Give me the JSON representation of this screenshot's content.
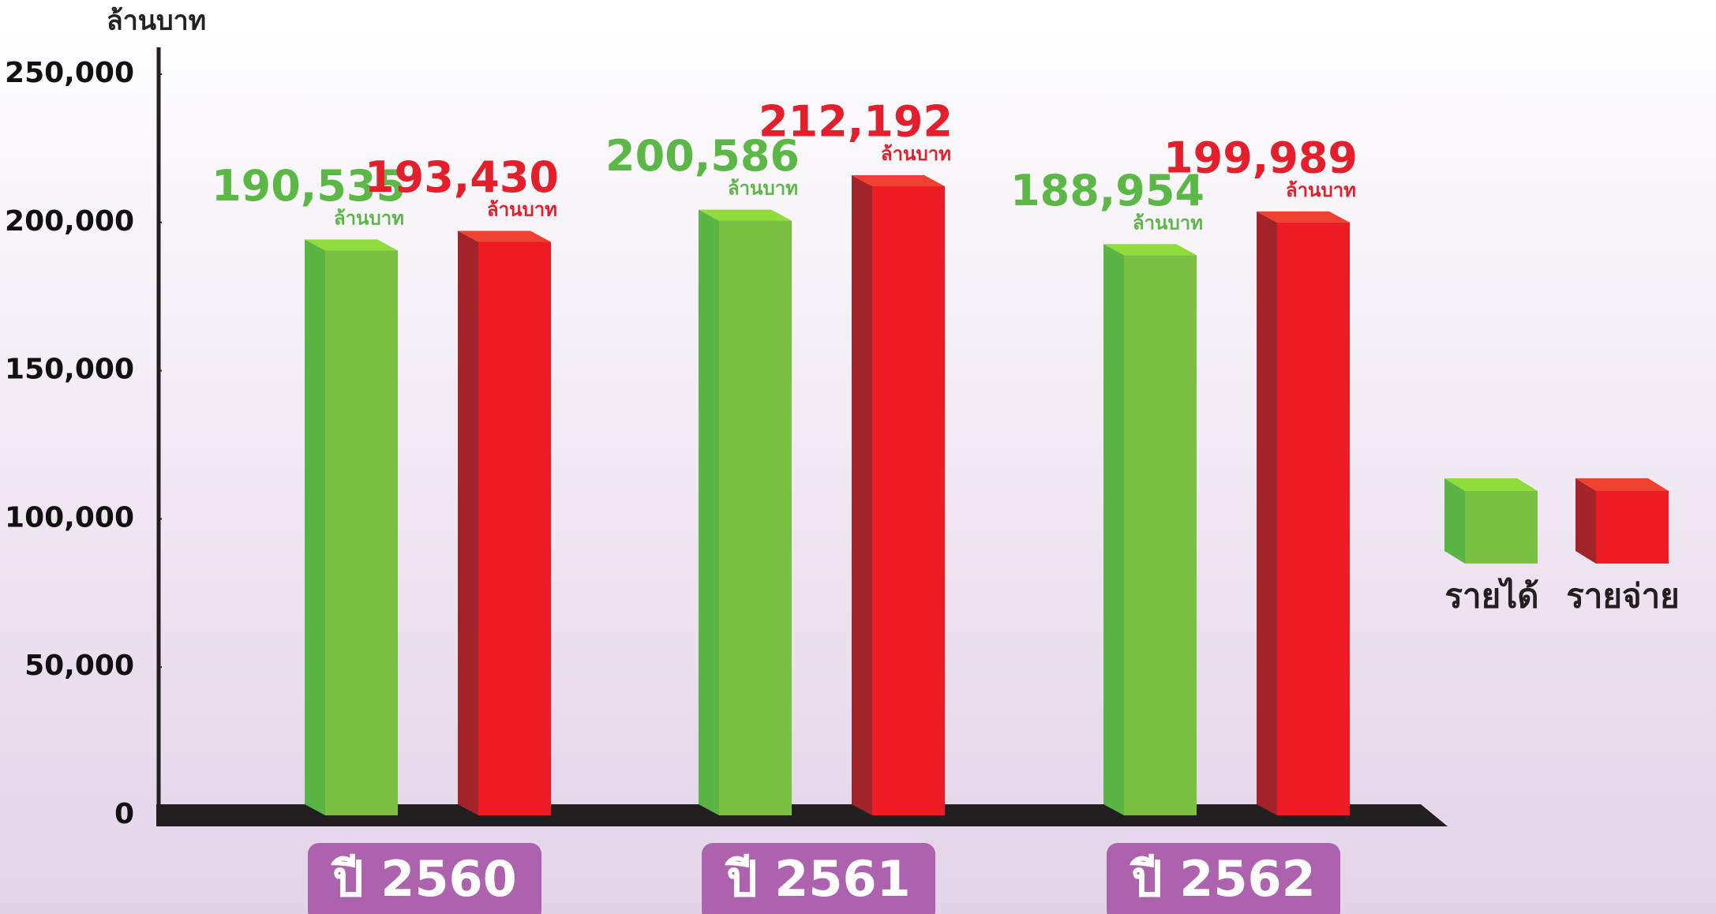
{
  "chart_data": {
    "type": "bar",
    "y_label": "ล้านบาท",
    "value_unit": "ล้านบาท",
    "categories": [
      "ปี 2560",
      "ปี 2561",
      "ปี 2562"
    ],
    "series": [
      {
        "name": "รายได้",
        "color": "#7ac143",
        "values": [
          190535,
          200586,
          188954
        ],
        "value_labels": [
          "190,535",
          "200,586",
          "188,954"
        ]
      },
      {
        "name": "รายจ่าย",
        "color": "#ed1c24",
        "values": [
          193430,
          212192,
          199989
        ],
        "value_labels": [
          "193,430",
          "212,192",
          "199,989"
        ]
      }
    ],
    "ylim": [
      0,
      250000
    ],
    "yticks": [
      {
        "value": 0,
        "label": "0"
      },
      {
        "value": 50000,
        "label": "50,000"
      },
      {
        "value": 100000,
        "label": "100,000"
      },
      {
        "value": 150000,
        "label": "150,000"
      },
      {
        "value": 200000,
        "label": "200,000"
      },
      {
        "value": 250000,
        "label": "250,000"
      }
    ],
    "legend": "right"
  }
}
